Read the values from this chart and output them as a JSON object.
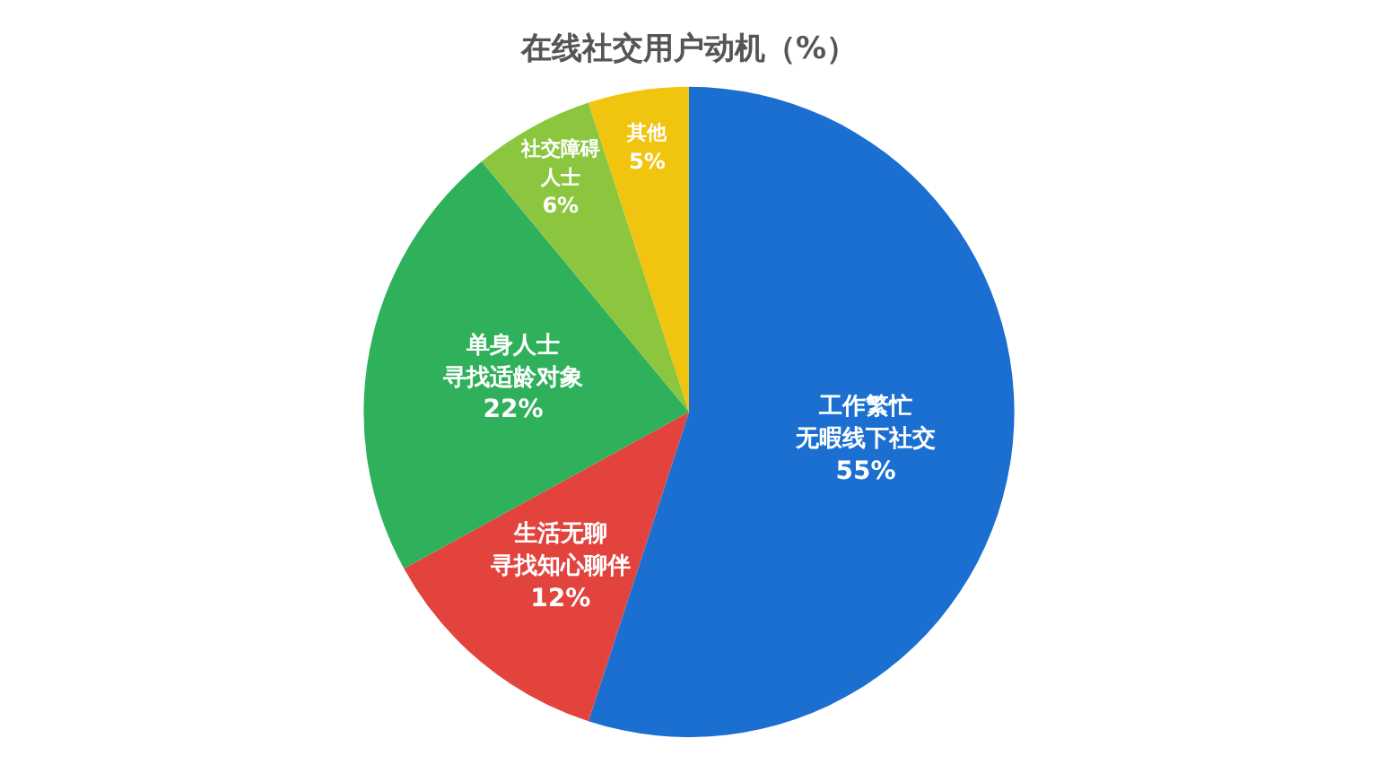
{
  "chart_data": {
    "type": "pie",
    "title": "在线社交用户动机（%）",
    "categories": [
      "工作繁忙无暇线下社交",
      "生活无聊寻找知心聊伴",
      "单身人士寻找适龄对象",
      "社交障碍人士",
      "其他"
    ],
    "values": [
      55,
      12,
      22,
      6,
      5
    ],
    "value_labels": [
      "55%",
      "12%",
      "22%",
      "6%",
      "5%"
    ],
    "colors": [
      "#1a6fd0",
      "#e2433d",
      "#2fb05a",
      "#8cc63f",
      "#f1c40f"
    ],
    "legend": false
  }
}
